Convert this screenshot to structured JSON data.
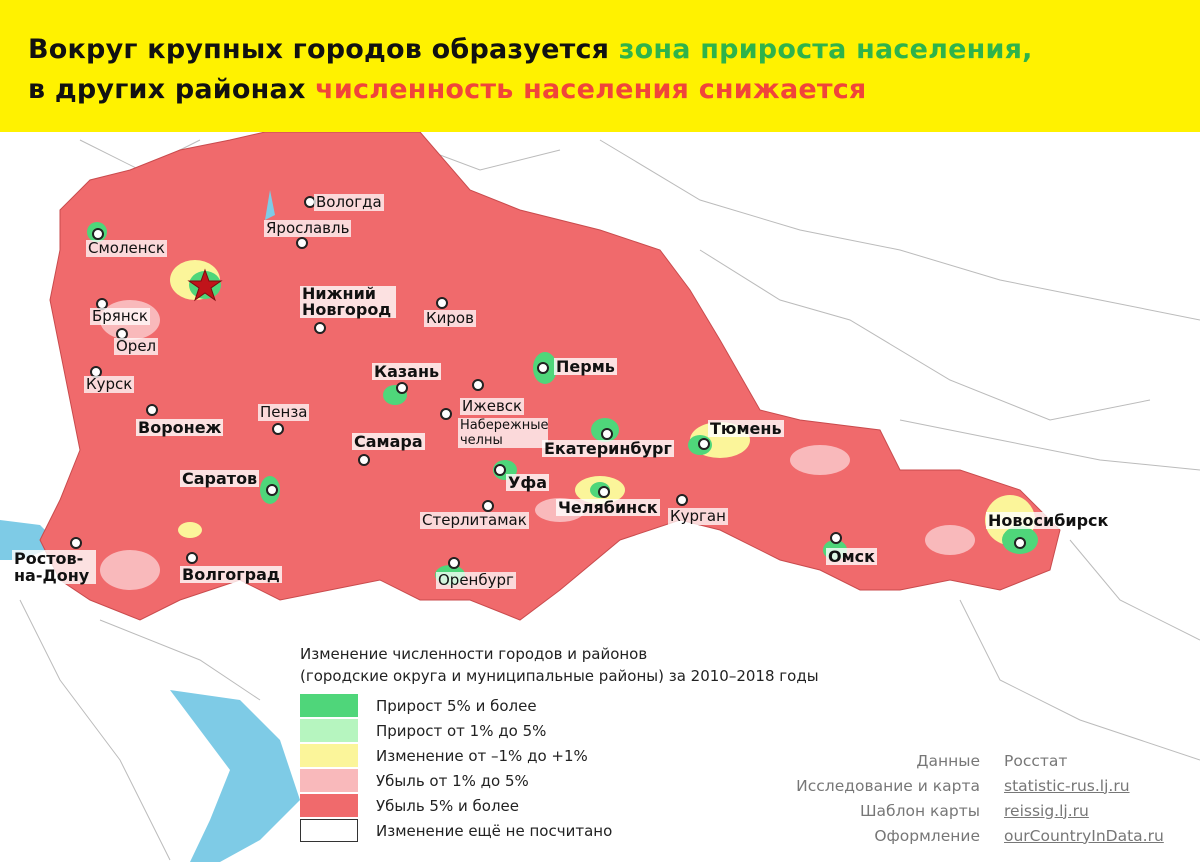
{
  "header": {
    "line1_prefix": "Вокруг крупных городов образуется ",
    "line1_highlight": "зона прироста населения,",
    "line2_prefix": "в других районах ",
    "line2_highlight": "численность населения снижается",
    "colors": {
      "background": "#fff200",
      "green": "#2fb34a",
      "red": "#f0453a"
    }
  },
  "map": {
    "capital_icon": "star-icon",
    "cities": [
      {
        "name": "Вологда"
      },
      {
        "name": "Ярославль"
      },
      {
        "name": "Смоленск"
      },
      {
        "name": "Нижний Новгород"
      },
      {
        "name": "Брянск"
      },
      {
        "name": "Киров"
      },
      {
        "name": "Орел"
      },
      {
        "name": "Курск"
      },
      {
        "name": "Казань"
      },
      {
        "name": "Пермь"
      },
      {
        "name": "Воронеж"
      },
      {
        "name": "Пенза"
      },
      {
        "name": "Ижевск"
      },
      {
        "name": "Набережные челны"
      },
      {
        "name": "Самара"
      },
      {
        "name": "Екатеринбург"
      },
      {
        "name": "Тюмень"
      },
      {
        "name": "Саратов"
      },
      {
        "name": "Уфа"
      },
      {
        "name": "Челябинск"
      },
      {
        "name": "Курган"
      },
      {
        "name": "Стерлитамак"
      },
      {
        "name": "Новосибирск"
      },
      {
        "name": "Омск"
      },
      {
        "name": "Ростов-на-Дону"
      },
      {
        "name": "Волгоград"
      },
      {
        "name": "Оренбург"
      }
    ]
  },
  "legend": {
    "title_line1": "Изменение численности городов и районов",
    "title_line2": "(городские округа и муниципальные районы) за 2010–2018 годы",
    "items": [
      {
        "label": "Прирост 5% и более",
        "color": "#4fd67a"
      },
      {
        "label": "Прирост от 1% до 5%",
        "color": "#b6f5bf"
      },
      {
        "label": "Изменение от –1% до +1%",
        "color": "#fbf59a"
      },
      {
        "label": "Убыль от 1% до 5%",
        "color": "#f9b9bb"
      },
      {
        "label": "Убыль 5% и более",
        "color": "#f06a6c"
      },
      {
        "label": "Изменение ещё не посчитано",
        "color": "#ffffff"
      }
    ]
  },
  "credits": [
    {
      "key": "Данные",
      "value": "Росстат"
    },
    {
      "key": "Исследование и карта",
      "value": "statistic-rus.lj.ru"
    },
    {
      "key": "Шаблон карты",
      "value": "reissig.lj.ru"
    },
    {
      "key": "Оформление",
      "value": "ourCountryInData.ru"
    }
  ]
}
